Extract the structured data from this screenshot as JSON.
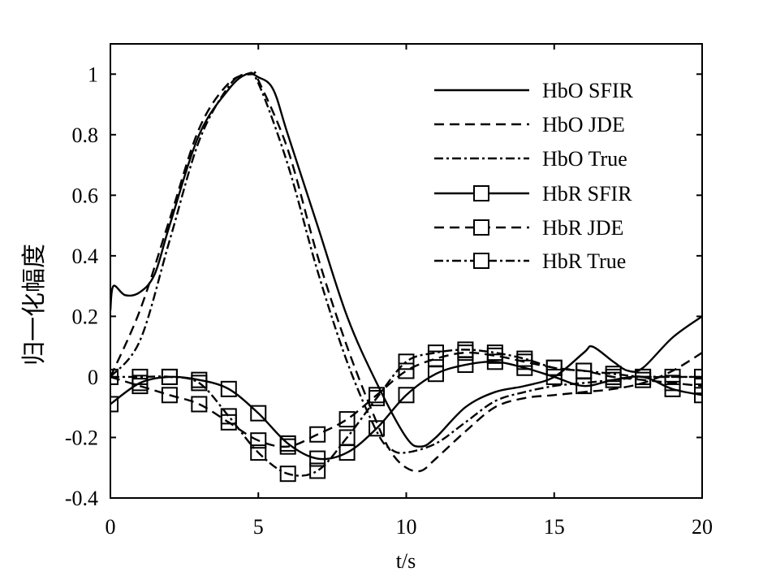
{
  "chart_data": {
    "type": "line",
    "title": "",
    "xlabel": "t/s",
    "ylabel": "归一化幅度",
    "xlim": [
      0,
      20
    ],
    "ylim": [
      -0.4,
      1.1
    ],
    "xticks": [
      0,
      5,
      10,
      15,
      20
    ],
    "xtick_labels": [
      "0",
      "5",
      "10",
      "15",
      "20"
    ],
    "yticks": [
      -0.4,
      -0.2,
      0,
      0.2,
      0.4,
      0.6,
      0.8,
      1
    ],
    "ytick_labels": [
      "-0.4",
      "-0.2",
      "0",
      "0.2",
      "0.4",
      "0.6",
      "0.8",
      "1"
    ],
    "grid": false,
    "legend_position": "top-right",
    "series": [
      {
        "name": "HbO SFIR",
        "style": "solid",
        "marker": "none",
        "x": [
          0,
          0.1,
          0.5,
          1,
          1.5,
          2,
          3,
          4,
          4.6,
          5,
          5.5,
          6,
          7,
          8,
          9,
          10,
          10.5,
          11,
          12,
          13,
          14,
          15,
          16,
          16.3,
          17,
          17.5,
          18,
          19,
          20
        ],
        "y": [
          0.22,
          0.3,
          0.27,
          0.28,
          0.34,
          0.5,
          0.8,
          0.95,
          1.0,
          0.99,
          0.95,
          0.8,
          0.5,
          0.2,
          -0.02,
          -0.2,
          -0.23,
          -0.2,
          -0.1,
          -0.05,
          -0.03,
          0.0,
          0.08,
          0.1,
          0.05,
          0.02,
          0.03,
          0.13,
          0.2
        ]
      },
      {
        "name": "HbO JDE",
        "style": "dashed",
        "marker": "none",
        "x": [
          0,
          1,
          2,
          3,
          4,
          4.8,
          5,
          6,
          7,
          8,
          9,
          9.5,
          10,
          10.5,
          11,
          12,
          13,
          14,
          15,
          16,
          17,
          18,
          19,
          20
        ],
        "y": [
          0.0,
          0.22,
          0.52,
          0.82,
          0.97,
          1.0,
          0.98,
          0.75,
          0.4,
          0.1,
          -0.15,
          -0.25,
          -0.3,
          -0.31,
          -0.27,
          -0.18,
          -0.1,
          -0.07,
          -0.06,
          -0.05,
          -0.04,
          -0.02,
          0.02,
          0.08
        ]
      },
      {
        "name": "HbO True",
        "style": "dashdot",
        "marker": "none",
        "x": [
          0,
          1,
          2,
          3,
          4,
          4.6,
          5,
          6,
          7,
          8,
          9,
          9.5,
          10,
          11,
          12,
          13,
          14,
          15,
          16,
          17,
          18,
          19,
          20
        ],
        "y": [
          0.0,
          0.12,
          0.45,
          0.78,
          0.96,
          1.0,
          0.97,
          0.7,
          0.35,
          0.05,
          -0.18,
          -0.24,
          -0.25,
          -0.22,
          -0.15,
          -0.08,
          -0.05,
          -0.03,
          -0.02,
          -0.01,
          0.0,
          0.0,
          0.0
        ]
      },
      {
        "name": "HbR SFIR",
        "style": "solid",
        "marker": "square",
        "x": [
          0,
          1,
          2,
          3,
          4,
          5,
          6,
          7,
          8,
          9,
          10,
          11,
          12,
          13,
          14,
          15,
          16,
          17,
          18,
          19,
          20
        ],
        "y": [
          -0.09,
          -0.02,
          0.0,
          -0.01,
          -0.04,
          -0.12,
          -0.22,
          -0.27,
          -0.25,
          -0.17,
          -0.06,
          0.01,
          0.04,
          0.05,
          0.03,
          0.0,
          -0.03,
          -0.01,
          0.0,
          -0.04,
          -0.06
        ]
      },
      {
        "name": "HbR JDE",
        "style": "dashed",
        "marker": "square",
        "x": [
          0,
          1,
          2,
          3,
          4,
          5,
          6,
          7,
          8,
          9,
          10,
          11,
          12,
          13,
          14,
          15,
          16,
          17,
          18,
          19,
          20
        ],
        "y": [
          0.0,
          -0.03,
          -0.06,
          -0.09,
          -0.15,
          -0.21,
          -0.23,
          -0.19,
          -0.14,
          -0.06,
          0.02,
          0.06,
          0.08,
          0.07,
          0.05,
          0.03,
          0.02,
          0.0,
          -0.01,
          -0.02,
          -0.03
        ]
      },
      {
        "name": "HbR True",
        "style": "dashdot",
        "marker": "square",
        "x": [
          0,
          1,
          2,
          3,
          4,
          5,
          6,
          7,
          8,
          9,
          10,
          11,
          12,
          13,
          14,
          15,
          16,
          17,
          18,
          19,
          20
        ],
        "y": [
          0.0,
          0.0,
          0.0,
          -0.02,
          -0.13,
          -0.25,
          -0.32,
          -0.31,
          -0.2,
          -0.07,
          0.05,
          0.08,
          0.09,
          0.08,
          0.06,
          0.03,
          0.02,
          0.01,
          0.0,
          0.0,
          0.0
        ]
      }
    ]
  }
}
